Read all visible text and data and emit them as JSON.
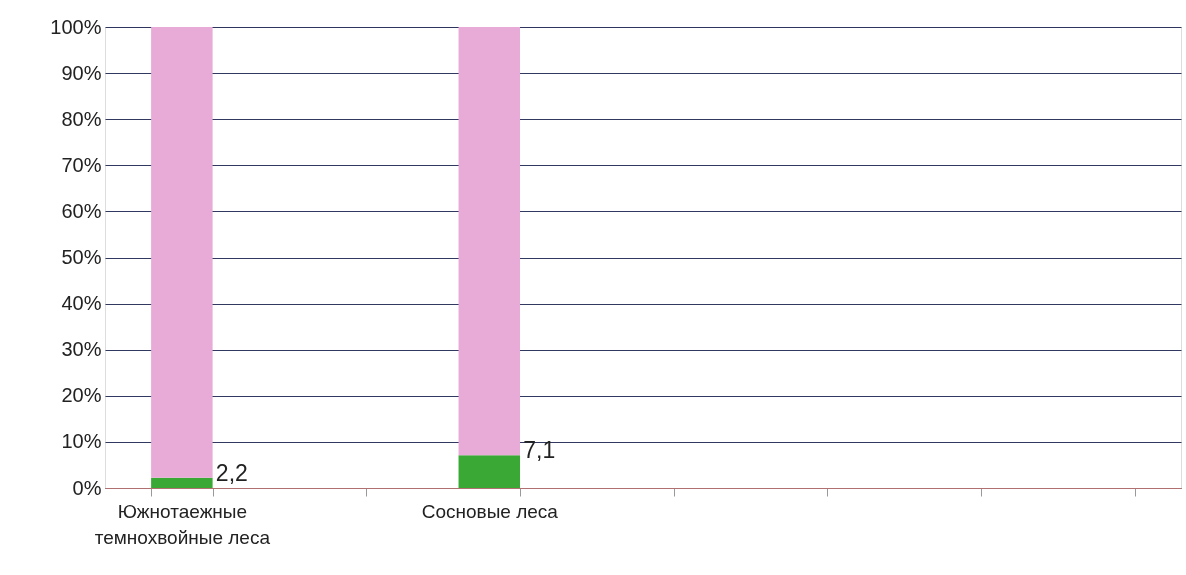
{
  "chart_data": {
    "type": "bar",
    "stacked": true,
    "categories": [
      "Южнотаежные темнохвойные леса",
      null,
      "Сосновые леса",
      null,
      null,
      null,
      null
    ],
    "series": [
      {
        "color": "#3aa835",
        "values": [
          2.2,
          null,
          7.1,
          null,
          null,
          null,
          null
        ],
        "value_labels": [
          "2,2",
          null,
          "7,1",
          null,
          null,
          null,
          null
        ]
      },
      {
        "color": "#e8aad6",
        "values": [
          97.8,
          null,
          92.9,
          null,
          null,
          null,
          null
        ]
      }
    ],
    "ylim": [
      0,
      100
    ],
    "yticks": [
      {
        "value": 0,
        "label": "0%"
      },
      {
        "value": 10,
        "label": "10%"
      },
      {
        "value": 20,
        "label": "20%"
      },
      {
        "value": 30,
        "label": "30%"
      },
      {
        "value": 40,
        "label": "40%"
      },
      {
        "value": 50,
        "label": "50%"
      },
      {
        "value": 60,
        "label": "60%"
      },
      {
        "value": 70,
        "label": "70%"
      },
      {
        "value": 80,
        "label": "80%"
      },
      {
        "value": 90,
        "label": "90%"
      },
      {
        "value": 100,
        "label": "100%"
      }
    ],
    "grid": "y"
  }
}
